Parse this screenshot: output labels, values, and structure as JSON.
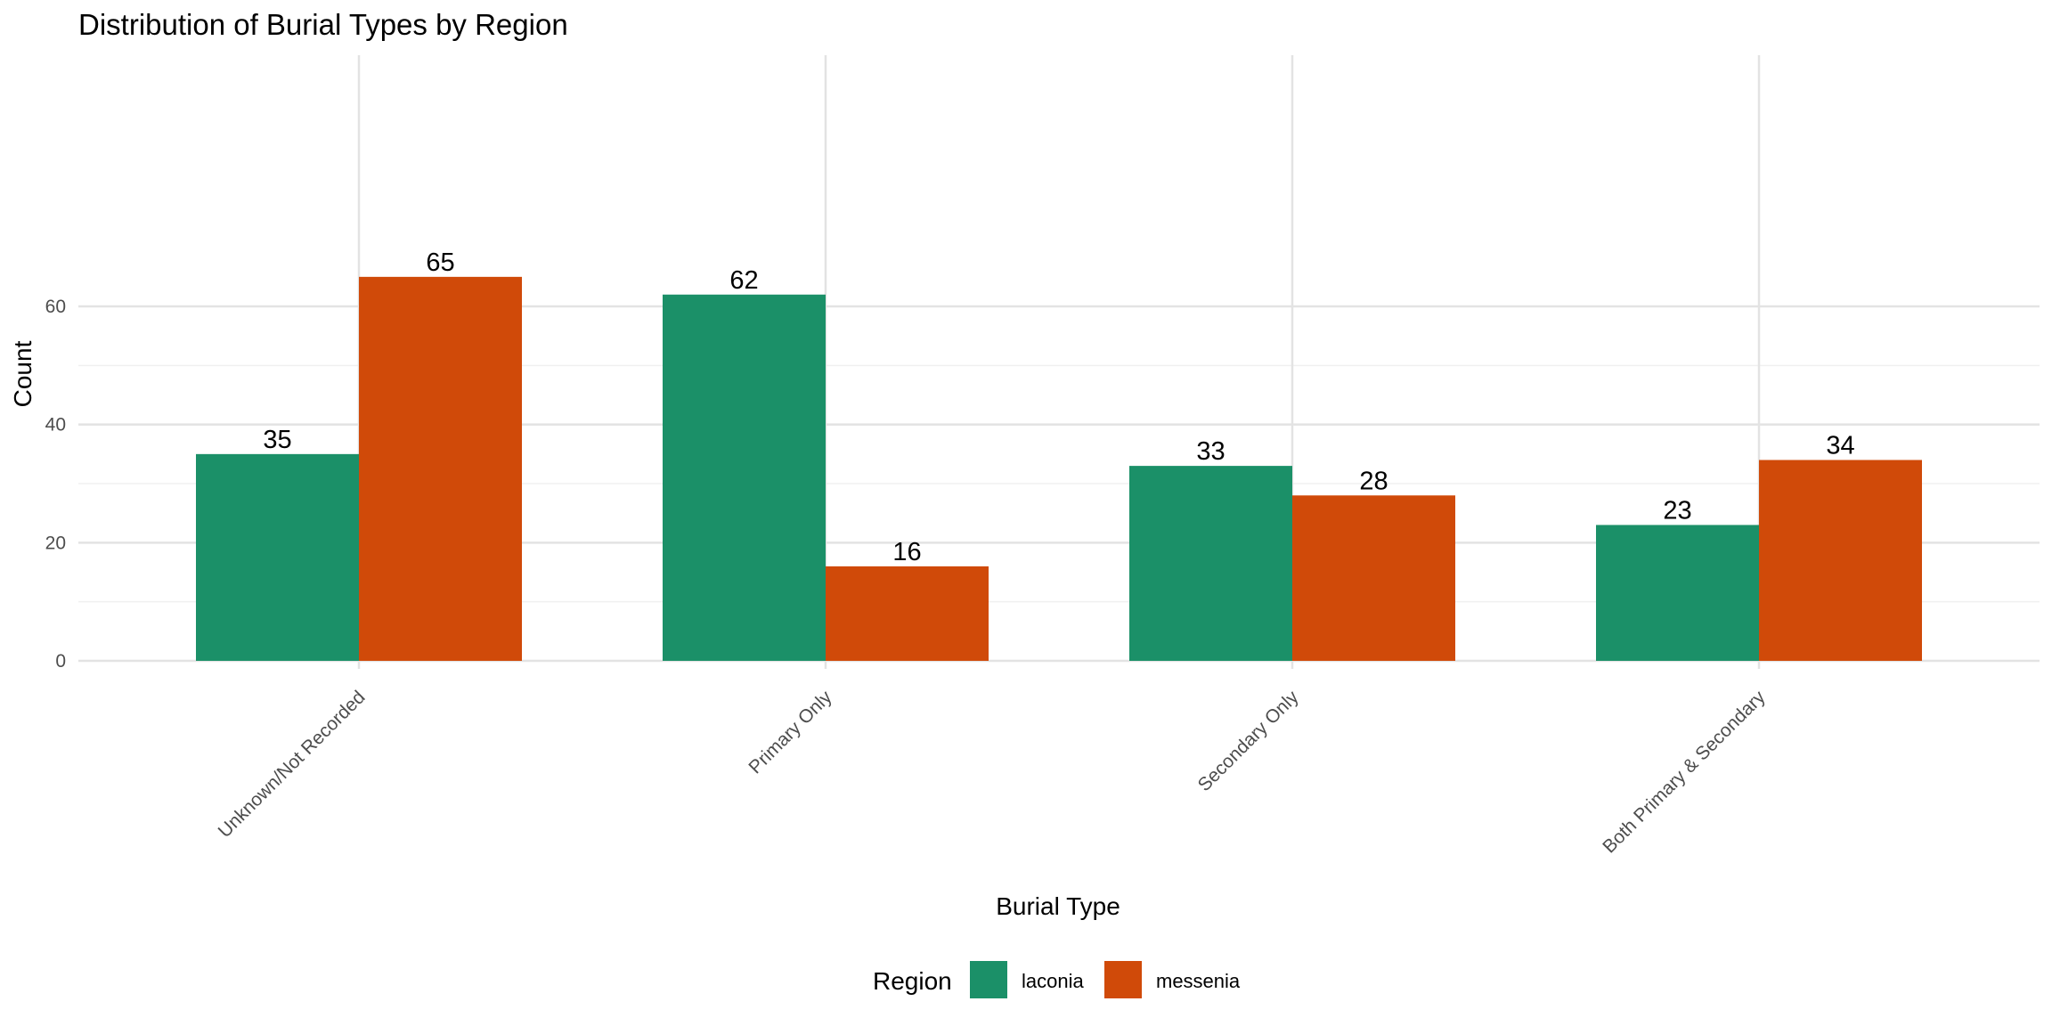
{
  "chart_data": {
    "type": "bar",
    "title": "Distribution of Burial Types by Region",
    "xlabel": "Burial Type",
    "ylabel": "Count",
    "categories": [
      "Unknown/Not Recorded",
      "Primary Only",
      "Secondary Only",
      "Both Primary & Secondary"
    ],
    "series": [
      {
        "name": "laconia",
        "values": [
          35,
          62,
          33,
          23
        ],
        "color": "#1b9068"
      },
      {
        "name": "messenia",
        "values": [
          65,
          16,
          28,
          34
        ],
        "color": "#d04a09"
      }
    ],
    "ylim": [
      0,
      68
    ],
    "yticks": [
      0,
      20,
      40,
      60
    ],
    "grid": true,
    "legend": {
      "title": "Region",
      "position": "bottom"
    }
  }
}
